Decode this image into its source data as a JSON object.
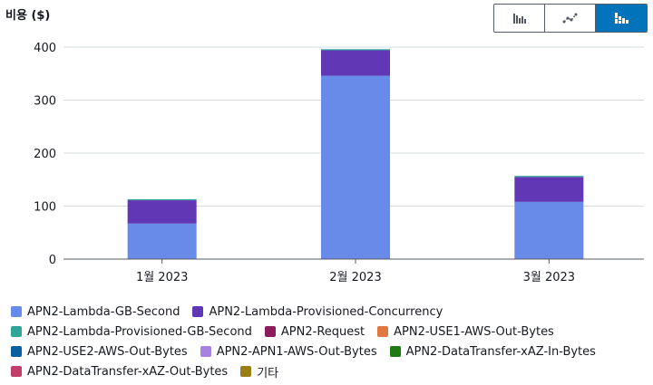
{
  "header": {
    "title": "비용 ($)"
  },
  "toggle": {
    "buttons": [
      {
        "icon": "bar-chart-icon",
        "active": false
      },
      {
        "icon": "line-chart-icon",
        "active": false
      },
      {
        "icon": "stacked-bar-chart-icon",
        "active": true
      }
    ]
  },
  "chart_data": {
    "type": "bar",
    "stacked": true,
    "title": "비용 ($)",
    "categories": [
      "1월 2023",
      "2월 2023",
      "3월 2023"
    ],
    "ylim": [
      0,
      400
    ],
    "yticks": [
      0,
      100,
      200,
      300,
      400
    ],
    "grid": true,
    "legend_position": "bottom",
    "series": [
      {
        "name": "APN2-Lambda-GB-Second",
        "color": "#688ae8",
        "values": [
          67,
          346,
          108
        ]
      },
      {
        "name": "APN2-Lambda-Provisioned-Concurrency",
        "color": "#6237b5",
        "values": [
          44,
          48,
          47
        ]
      },
      {
        "name": "APN2-Lambda-Provisioned-GB-Second",
        "color": "#2ea597",
        "values": [
          2,
          2,
          2
        ]
      },
      {
        "name": "APN2-Request",
        "color": "#8c1d5c",
        "values": [
          0,
          0,
          0
        ]
      },
      {
        "name": "APN2-USE1-AWS-Out-Bytes",
        "color": "#e07941",
        "values": [
          0,
          0,
          0
        ]
      },
      {
        "name": "APN2-USE2-AWS-Out-Bytes",
        "color": "#0b5f9e",
        "values": [
          0,
          0,
          0
        ]
      },
      {
        "name": "APN2-APN1-AWS-Out-Bytes",
        "color": "#a783e1",
        "values": [
          0,
          0,
          0
        ]
      },
      {
        "name": "APN2-DataTransfer-xAZ-In-Bytes",
        "color": "#1e7a12",
        "values": [
          0,
          0,
          0
        ]
      },
      {
        "name": "APN2-DataTransfer-xAZ-Out-Bytes",
        "color": "#c33d69",
        "values": [
          0,
          0,
          0
        ]
      },
      {
        "name": "기타",
        "color": "#9b7f15",
        "values": [
          0,
          0,
          0
        ]
      }
    ]
  }
}
